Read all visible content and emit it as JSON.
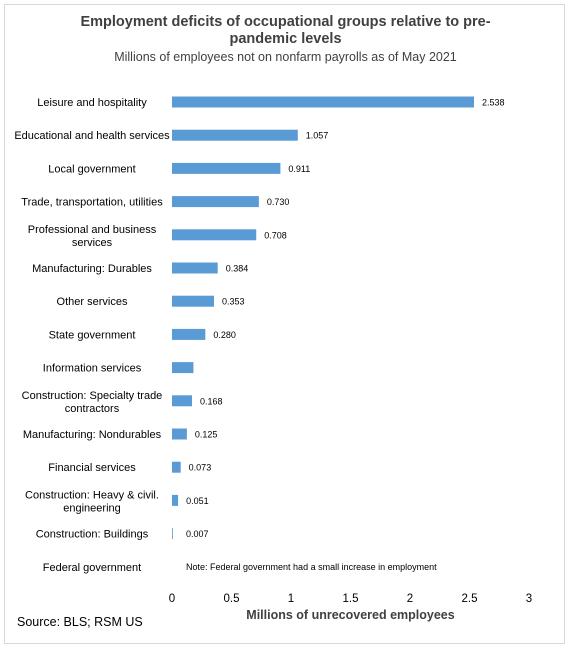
{
  "chart_data": {
    "type": "bar",
    "orientation": "horizontal",
    "title": "Employment deficits of occupational groups relative to pre-pandemic levels",
    "subtitle": "Millions of employees not on nonfarm payrolls as of May 2021",
    "xlabel": "Millions of unrecovered employees",
    "xlim": [
      0,
      3
    ],
    "xticks": [
      "0",
      "0.5",
      "1",
      "1.5",
      "2",
      "2.5",
      "3",
      "3"
    ],
    "grid": false,
    "categories": [
      [
        "Leisure and hospitality"
      ],
      [
        "Educational and health services"
      ],
      [
        "Local government"
      ],
      [
        "Trade, transportation, utilities"
      ],
      [
        "Professional and business",
        "services"
      ],
      [
        "Manufacturing: Durables"
      ],
      [
        "Other services"
      ],
      [
        "State government"
      ],
      [
        "Information services"
      ],
      [
        "Construction: Specialty trade",
        "contractors"
      ],
      [
        "Manufacturing: Nondurables"
      ],
      [
        "Financial services"
      ],
      [
        "Construction: Heavy & civil.",
        "engineering"
      ],
      [
        "Construction: Buildings"
      ],
      [
        "Federal government"
      ]
    ],
    "values": [
      2.538,
      1.057,
      0.911,
      0.73,
      0.708,
      0.384,
      0.353,
      0.28,
      0.18,
      0.168,
      0.125,
      0.073,
      0.051,
      0.007,
      null
    ],
    "data_labels": [
      "2.538",
      "1.057",
      "0.911",
      "0.730",
      "0.708",
      "0.384",
      "0.353",
      "0.280",
      "",
      "0.168",
      "0.125",
      "0.073",
      "0.051",
      "0.007",
      ""
    ],
    "annotation": "Note: Federal government had a small increase in employment",
    "bar_color": "#5b9bd5"
  },
  "source": "Source: BLS; RSM US"
}
